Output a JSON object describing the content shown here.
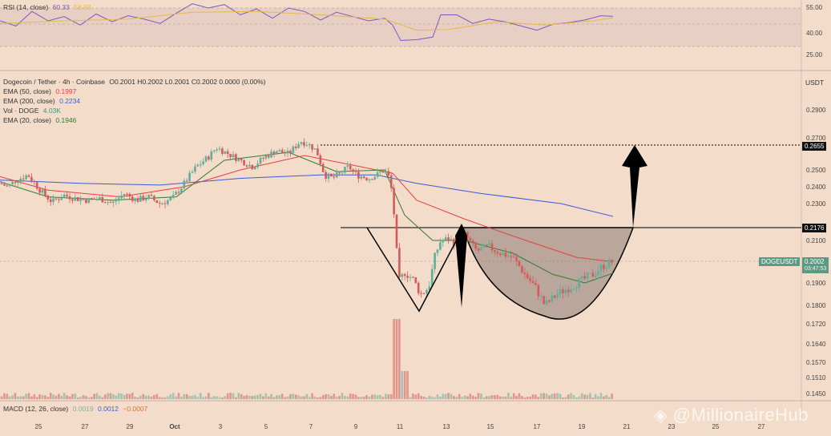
{
  "rsi": {
    "title": "RSI (14, close)",
    "value": "60.33",
    "ma_value": "58.58",
    "levels": [
      "55.00",
      "40.00",
      "25.00"
    ]
  },
  "symbol": {
    "title": "Dogecoin / Tether · 4h · Coinbase",
    "ohlc": "O0.2001 H0.2002 L0.2001 C0.2002 0.0000 (0.00%)",
    "currency": "USDT"
  },
  "indicators": [
    {
      "label": "EMA (50, close)",
      "value": "0.1997",
      "color": "#e63f3f"
    },
    {
      "label": "EMA (200, close)",
      "value": "0.2234",
      "color": "#3b5bd9"
    },
    {
      "label": "Vol · DOGE",
      "value": "4.03K",
      "color": "#2f9e7e"
    },
    {
      "label": "EMA (20, close)",
      "value": "0.1946",
      "color": "#2e7d32"
    }
  ],
  "macd": {
    "title": "MACD (12, 26, close)",
    "v1": "0.0019",
    "v2": "0.0012",
    "v3": "−0.0007"
  },
  "price_axis": [
    "0.2900",
    "0.2700",
    "0.2500",
    "0.2400",
    "0.2300",
    "0.2100",
    "0.1900",
    "0.1800",
    "0.1720",
    "0.1640",
    "0.1570",
    "0.1510",
    "0.1450"
  ],
  "markers": {
    "target": "0.2655",
    "neckline": "0.2176",
    "current_label": "DOGEUSDT",
    "current": "0.2002",
    "countdown": "03:47:53"
  },
  "x_axis": [
    "25",
    "27",
    "29",
    "Oct",
    "3",
    "5",
    "7",
    "9",
    "11",
    "13",
    "15",
    "17",
    "19",
    "21",
    "23",
    "25",
    "27"
  ],
  "watermark": "@MillionaireHub",
  "colors": {
    "up": "#5fae99",
    "down": "#d65a5a",
    "pattern": "#000000",
    "cup_fill": "#8a7a72"
  },
  "chart_data": {
    "type": "candlestick",
    "title": "Dogecoin / Tether · 4h · Coinbase",
    "ylim": [
      0.142,
      0.3
    ],
    "x_range": [
      "Sep 24",
      "Oct 28"
    ],
    "annotations": [
      "target 0.2655",
      "neckline 0.2176",
      "cup-and-handle pattern with upward arrow"
    ],
    "series": [
      {
        "name": "EMA (50, close)",
        "last": 0.1997
      },
      {
        "name": "EMA (200, close)",
        "last": 0.2234
      },
      {
        "name": "EMA (20, close)",
        "last": 0.1946
      }
    ]
  }
}
